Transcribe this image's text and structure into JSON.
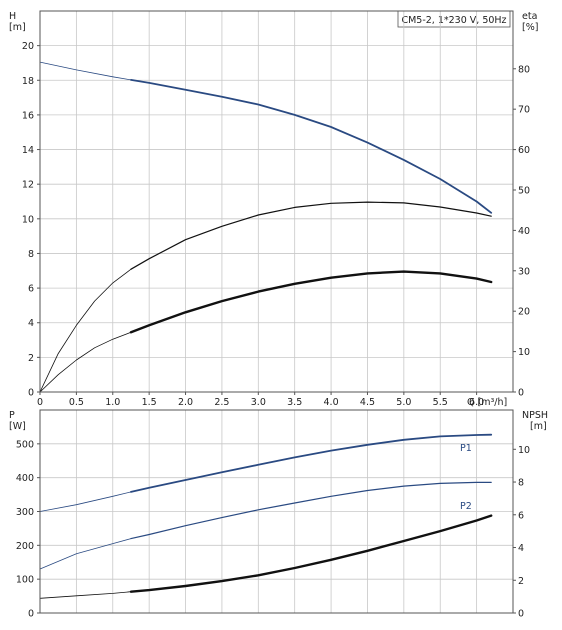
{
  "chart_data": [
    {
      "type": "line",
      "title": "CM5-2, 1*230 V, 50Hz",
      "x_axis": {
        "label": "Q [m³/h]",
        "range": [
          0,
          6.5
        ],
        "ticks": [
          0,
          0.5,
          1,
          1.5,
          2,
          2.5,
          3,
          3.5,
          4,
          4.5,
          5,
          5.5,
          6
        ],
        "tick_labels": [
          "0",
          "0.5",
          "1.0",
          "1.5",
          "2.0",
          "2.5",
          "3.0",
          "3.5",
          "4.0",
          "4.5",
          "5.0",
          "5.5",
          "6.0"
        ]
      },
      "y_axis_left": {
        "label": "H",
        "unit": "[m]",
        "range": [
          0,
          22
        ],
        "ticks": [
          0,
          2,
          4,
          6,
          8,
          10,
          12,
          14,
          16,
          18,
          20
        ]
      },
      "y_axis_right": {
        "label": "eta",
        "unit": "[%]",
        "range": [
          0,
          94.3
        ],
        "ticks": [
          0,
          10,
          20,
          30,
          40,
          50,
          60,
          70,
          80
        ]
      },
      "grid": true,
      "series": [
        {
          "axis": "left",
          "stroke_width": 1.8,
          "color": "#2a4a82",
          "operating_from": 1.25,
          "x": [
            0,
            0.5,
            1.0,
            1.25,
            1.5,
            2.0,
            2.5,
            3.0,
            3.5,
            4.0,
            4.5,
            5.0,
            5.5,
            6.0,
            6.2
          ],
          "y": [
            19.05,
            18.6,
            18.2,
            18.02,
            17.85,
            17.45,
            17.05,
            16.6,
            16.0,
            15.3,
            14.4,
            13.4,
            12.3,
            11.0,
            10.35
          ]
        },
        {
          "axis": "right",
          "stroke_width": 1.2,
          "color": "#111111",
          "operating_from": 1.25,
          "x": [
            0,
            0.25,
            0.5,
            0.75,
            1.0,
            1.25,
            1.5,
            2.0,
            2.5,
            3.0,
            3.5,
            4.0,
            4.5,
            5.0,
            5.5,
            6.0,
            6.2
          ],
          "y": [
            0,
            9.5,
            16.5,
            22.5,
            27.0,
            30.4,
            33.0,
            37.7,
            41.0,
            43.8,
            45.7,
            46.7,
            47.0,
            46.8,
            45.8,
            44.3,
            43.5
          ]
        },
        {
          "axis": "left",
          "stroke_width": 2.4,
          "color": "#111111",
          "operating_from": 1.25,
          "x": [
            0,
            0.25,
            0.5,
            0.75,
            1.0,
            1.25,
            1.5,
            2.0,
            2.5,
            3.0,
            3.5,
            4.0,
            4.5,
            5.0,
            5.5,
            6.0,
            6.2
          ],
          "y": [
            0,
            1.0,
            1.85,
            2.55,
            3.05,
            3.45,
            3.85,
            4.6,
            5.25,
            5.8,
            6.25,
            6.6,
            6.85,
            6.95,
            6.85,
            6.55,
            6.35
          ]
        }
      ]
    },
    {
      "type": "line",
      "x_axis": {
        "range": [
          0,
          6.5
        ]
      },
      "y_axis_left": {
        "label": "P",
        "unit": "[W]",
        "range": [
          0,
          600
        ],
        "ticks": [
          0,
          100,
          200,
          300,
          400,
          500
        ]
      },
      "y_axis_right": {
        "label": "NPSH",
        "unit": "[m]",
        "range": [
          0,
          12.4
        ],
        "ticks": [
          0,
          2,
          4,
          6,
          8,
          10
        ]
      },
      "grid": true,
      "series": [
        {
          "name": "P1",
          "axis": "left",
          "stroke_width": 1.8,
          "color": "#2a4a82",
          "operating_from": 1.25,
          "x": [
            0,
            0.5,
            1.0,
            1.25,
            1.5,
            2.0,
            2.5,
            3.0,
            3.5,
            4.0,
            4.5,
            5.0,
            5.5,
            6.0,
            6.2
          ],
          "y": [
            300,
            320,
            345,
            358,
            370,
            393,
            416,
            438,
            460,
            480,
            497,
            512,
            522,
            526,
            527
          ]
        },
        {
          "name": "P2",
          "axis": "left",
          "stroke_width": 1.2,
          "color": "#2a4a82",
          "operating_from": 1.25,
          "x": [
            0,
            0.5,
            1.0,
            1.25,
            1.5,
            2.0,
            2.5,
            3.0,
            3.5,
            4.0,
            4.5,
            5.0,
            5.5,
            6.0,
            6.2
          ],
          "y": [
            130,
            175,
            205,
            220,
            232,
            258,
            282,
            305,
            325,
            345,
            362,
            375,
            383,
            386,
            386
          ]
        },
        {
          "axis": "right",
          "stroke_width": 2.4,
          "color": "#111111",
          "operating_from": 1.25,
          "x": [
            0,
            0.5,
            1.0,
            1.25,
            1.5,
            2.0,
            2.5,
            3.0,
            3.5,
            4.0,
            4.5,
            5.0,
            5.5,
            6.0,
            6.2
          ],
          "y": [
            0.9,
            1.05,
            1.2,
            1.3,
            1.4,
            1.65,
            1.95,
            2.3,
            2.75,
            3.25,
            3.8,
            4.4,
            5.0,
            5.65,
            5.95
          ]
        }
      ]
    }
  ]
}
